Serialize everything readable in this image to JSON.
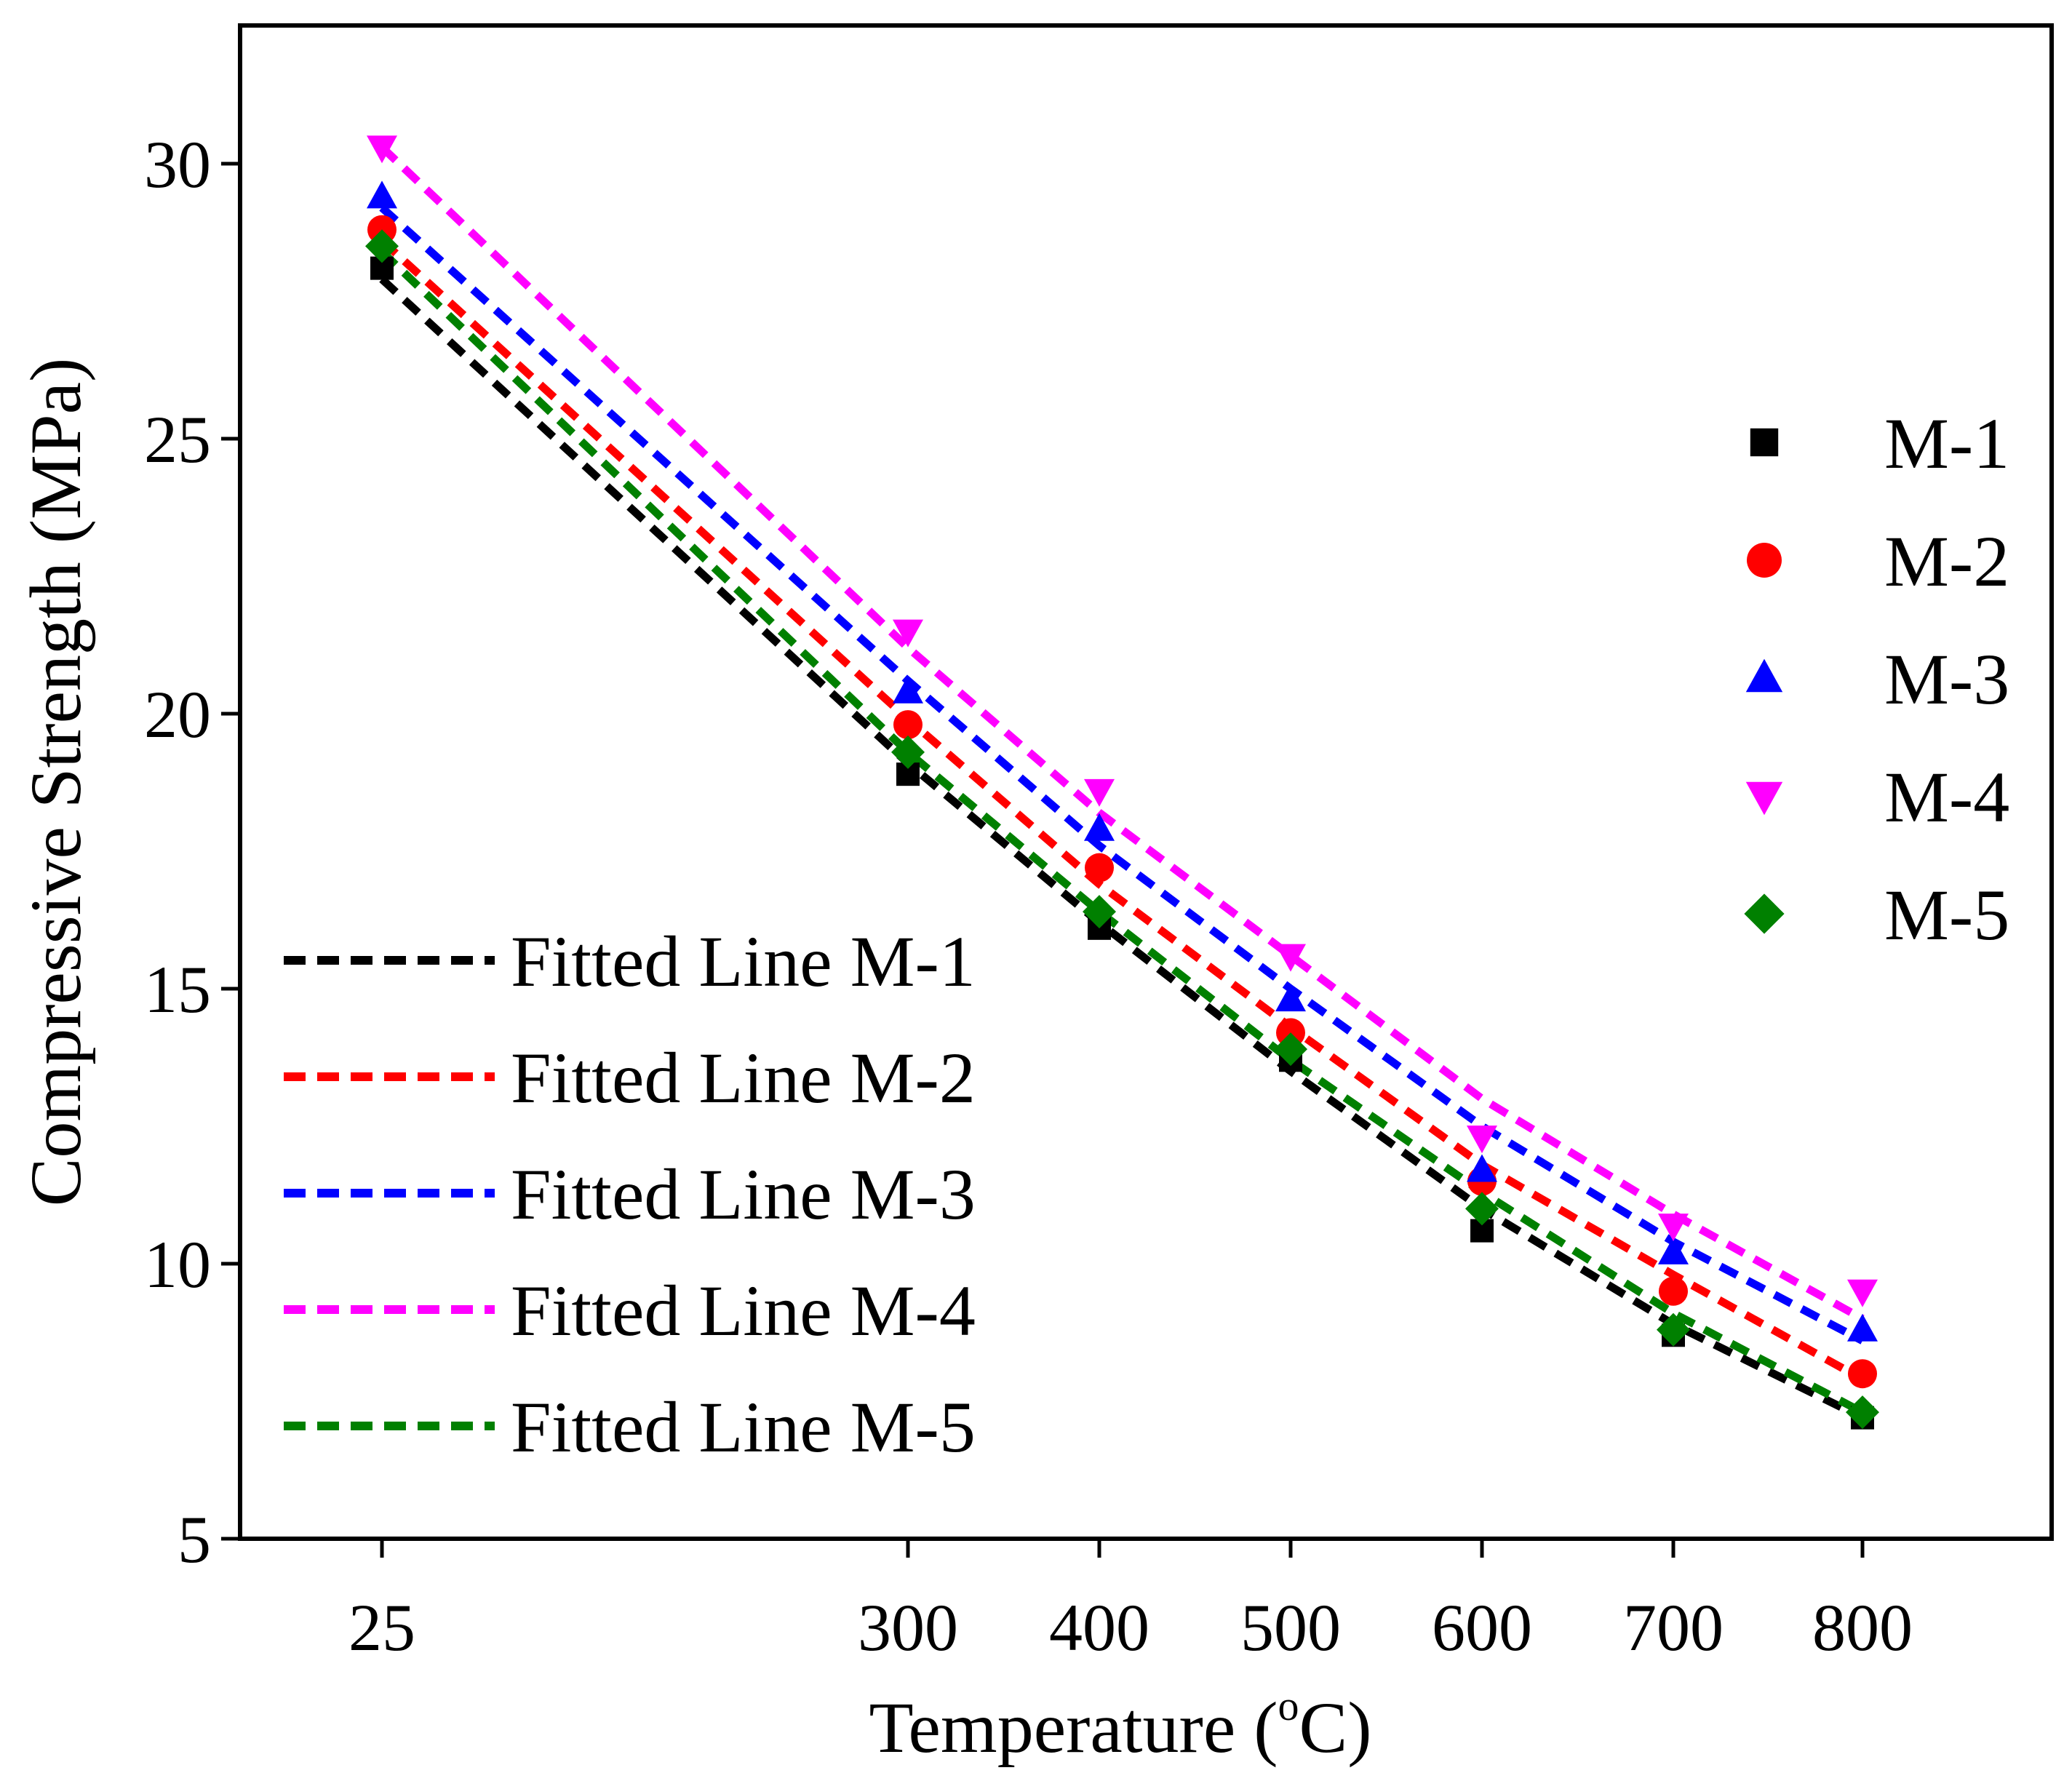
{
  "chart_data": {
    "type": "scatter",
    "xlabel_text": "Temperature (",
    "xlabel_degree": "o",
    "xlabel_unit": "C)",
    "ylabel": "Compressive Strength (MPa)",
    "ylim": [
      5,
      32.5
    ],
    "yticks": [
      5,
      10,
      15,
      20,
      25,
      30
    ],
    "x_ticks": [
      25,
      300,
      400,
      500,
      600,
      700,
      800
    ],
    "x_scale": "categorical-compressed",
    "series": [
      {
        "name": "M-1",
        "fit_name": "Fitted Line M-1",
        "color": "#000000",
        "marker": "square",
        "x": [
          25,
          300,
          400,
          500,
          600,
          700,
          800
        ],
        "values": [
          28.1,
          18.9,
          16.1,
          13.7,
          10.6,
          8.7,
          7.2
        ],
        "fit": [
          27.9,
          19.1,
          16.2,
          13.5,
          11.0,
          8.9,
          7.2
        ]
      },
      {
        "name": "M-2",
        "fit_name": "Fitted Line M-2",
        "color": "#ff0000",
        "marker": "circle",
        "x": [
          25,
          300,
          400,
          500,
          600,
          700,
          800
        ],
        "values": [
          28.8,
          19.8,
          17.2,
          14.2,
          11.5,
          9.5,
          8.0
        ],
        "fit": [
          28.6,
          19.9,
          16.9,
          14.3,
          11.8,
          9.8,
          7.9
        ]
      },
      {
        "name": "M-3",
        "fit_name": "Fitted Line M-3",
        "color": "#0000ff",
        "marker": "triangle-up",
        "x": [
          25,
          300,
          400,
          500,
          600,
          700,
          800
        ],
        "values": [
          29.4,
          20.4,
          17.9,
          14.8,
          11.7,
          10.2,
          8.8
        ],
        "fit": [
          29.2,
          20.6,
          17.6,
          15.0,
          12.5,
          10.4,
          8.6
        ]
      },
      {
        "name": "M-4",
        "fit_name": "Fitted Line M-4",
        "color": "#ff00ff",
        "marker": "triangle-down",
        "x": [
          25,
          300,
          400,
          500,
          600,
          700,
          800
        ],
        "values": [
          30.3,
          21.5,
          18.6,
          15.6,
          12.3,
          10.7,
          9.5
        ],
        "fit": [
          30.3,
          21.2,
          18.2,
          15.6,
          13.0,
          10.9,
          9.0
        ]
      },
      {
        "name": "M-5",
        "fit_name": "Fitted Line M-5",
        "color": "#008000",
        "marker": "diamond",
        "x": [
          25,
          300,
          400,
          500,
          600,
          700,
          800
        ],
        "values": [
          28.5,
          19.3,
          16.4,
          13.9,
          11.0,
          8.8,
          7.3
        ],
        "fit": [
          28.4,
          19.3,
          16.4,
          13.7,
          11.3,
          9.1,
          7.3
        ]
      }
    ]
  }
}
